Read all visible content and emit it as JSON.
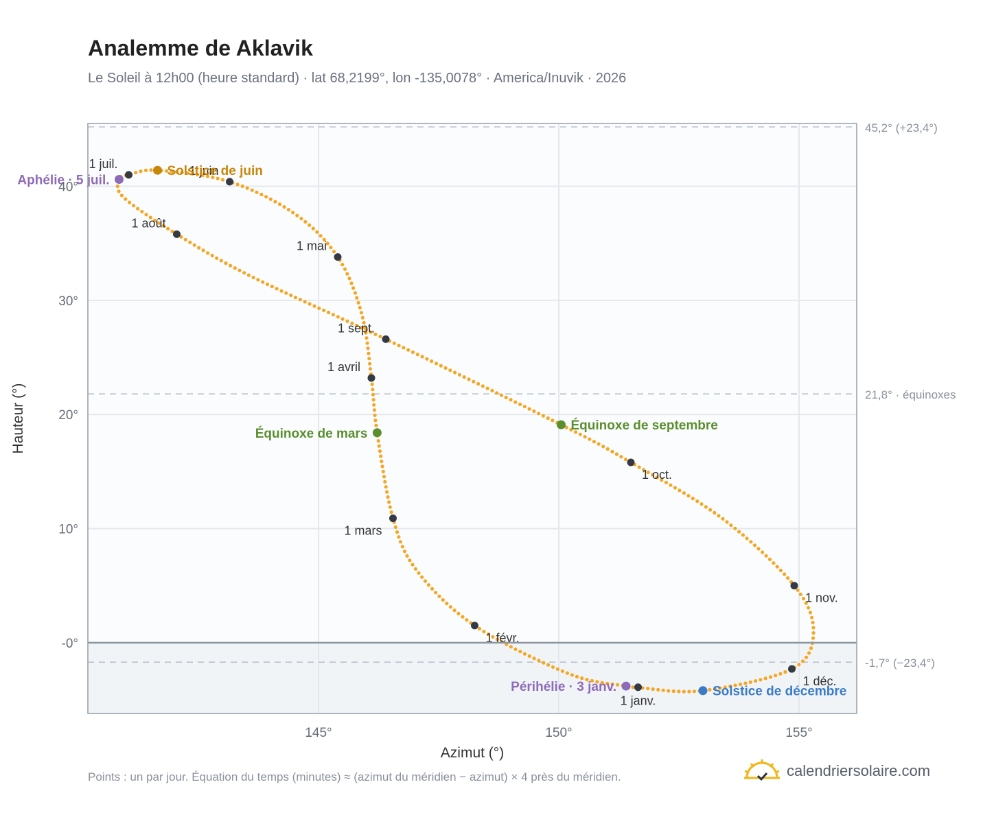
{
  "title": "Analemme de Aklavik",
  "subtitle": "Le Soleil à 12h00 (heure standard) · lat 68,2199°, lon -135,0078° · America/Inuvik · 2026",
  "footnote": "Points : un par jour. Équation du temps (minutes) ≈ (azimut du méridien − azimut) × 4 près du méridien.",
  "brand": "calendriersolaire.com",
  "colors": {
    "path": "#f5a623",
    "month_dot": "#333a44",
    "solstice_june": "#c8860a",
    "solstice_december": "#3a7bc8",
    "equinox": "#5a8f2f",
    "apsis": "#8e6bb8",
    "below_horizon": "#f1f4f7",
    "plot_bg": "#fbfcfd",
    "grid": "#e4e7ec",
    "reference_line": "#b9c2cc",
    "axis_text": "#666d78",
    "brand_icon": "#f2b51a"
  },
  "chart_data": {
    "type": "scatter",
    "xlabel": "Azimut (°)",
    "ylabel": "Hauteur (°)",
    "xlim": [
      140.2,
      156.2
    ],
    "ylim": [
      -6.2,
      45.5
    ],
    "xticks": [
      {
        "value": 145,
        "label": "145°"
      },
      {
        "value": 150,
        "label": "150°"
      },
      {
        "value": 155,
        "label": "155°"
      }
    ],
    "yticks": [
      {
        "value": 0,
        "label": "-0°"
      },
      {
        "value": 10,
        "label": "10°"
      },
      {
        "value": 20,
        "label": "20°"
      },
      {
        "value": 30,
        "label": "30°"
      },
      {
        "value": 40,
        "label": "40°"
      }
    ],
    "grid": true,
    "reference_lines": [
      {
        "y": 45.2,
        "label": "45,2° (+23,4°)"
      },
      {
        "y": 21.8,
        "label": "21,8° · équinoxes"
      },
      {
        "y": -1.7,
        "label": "-1,7° (−23,4°)"
      }
    ],
    "horizon": 0,
    "series_key_points": [
      {
        "date": "01-01",
        "x": 151.65,
        "y": -3.9
      },
      {
        "date": "01-03",
        "x": 151.4,
        "y": -3.8
      },
      {
        "date": "01-15",
        "x": 150.2,
        "y": -2.7
      },
      {
        "date": "02-01",
        "x": 148.25,
        "y": 1.5
      },
      {
        "date": "02-15",
        "x": 147.05,
        "y": 6.3
      },
      {
        "date": "03-01",
        "x": 146.55,
        "y": 10.9
      },
      {
        "date": "03-20",
        "x": 146.22,
        "y": 18.4
      },
      {
        "date": "04-01",
        "x": 146.1,
        "y": 23.2
      },
      {
        "date": "04-15",
        "x": 145.9,
        "y": 28.8
      },
      {
        "date": "05-01",
        "x": 145.4,
        "y": 33.8
      },
      {
        "date": "05-15",
        "x": 144.5,
        "y": 37.6
      },
      {
        "date": "06-01",
        "x": 143.15,
        "y": 40.4
      },
      {
        "date": "06-21",
        "x": 141.65,
        "y": 41.4
      },
      {
        "date": "07-01",
        "x": 141.05,
        "y": 41.0
      },
      {
        "date": "07-05",
        "x": 140.85,
        "y": 40.6
      },
      {
        "date": "07-15",
        "x": 140.95,
        "y": 39.0
      },
      {
        "date": "08-01",
        "x": 142.05,
        "y": 35.8
      },
      {
        "date": "08-15",
        "x": 143.6,
        "y": 32.1
      },
      {
        "date": "09-01",
        "x": 146.4,
        "y": 26.6
      },
      {
        "date": "09-22",
        "x": 150.05,
        "y": 19.1
      },
      {
        "date": "10-01",
        "x": 151.5,
        "y": 15.8
      },
      {
        "date": "10-15",
        "x": 153.4,
        "y": 10.9
      },
      {
        "date": "11-01",
        "x": 154.9,
        "y": 5.0
      },
      {
        "date": "11-15",
        "x": 155.3,
        "y": 0.9
      },
      {
        "date": "12-01",
        "x": 154.85,
        "y": -2.3
      },
      {
        "date": "12-21",
        "x": 153.0,
        "y": -4.2
      },
      {
        "date": "12-31",
        "x": 151.7,
        "y": -3.95
      }
    ],
    "month_markers": [
      {
        "label": "1 janv.",
        "x": 151.65,
        "y": -3.9,
        "anchor": "below"
      },
      {
        "label": "1 févr.",
        "x": 148.25,
        "y": 1.5,
        "anchor": "right-below"
      },
      {
        "label": "1 mars",
        "x": 146.55,
        "y": 10.9,
        "anchor": "left-below"
      },
      {
        "label": "1 avril",
        "x": 146.1,
        "y": 23.2,
        "anchor": "left-above"
      },
      {
        "label": "1 mai",
        "x": 145.4,
        "y": 33.8,
        "anchor": "left-above"
      },
      {
        "label": "1 juin",
        "x": 143.15,
        "y": 40.4,
        "anchor": "left-above"
      },
      {
        "label": "1 juil.",
        "x": 141.05,
        "y": 41.0,
        "anchor": "left-above"
      },
      {
        "label": "1 août",
        "x": 142.05,
        "y": 35.8,
        "anchor": "left-above"
      },
      {
        "label": "1 sept.",
        "x": 146.4,
        "y": 26.6,
        "anchor": "left-above"
      },
      {
        "label": "1 oct.",
        "x": 151.5,
        "y": 15.8,
        "anchor": "right-below"
      },
      {
        "label": "1 nov.",
        "x": 154.9,
        "y": 5.0,
        "anchor": "right-below"
      },
      {
        "label": "1 déc.",
        "x": 154.85,
        "y": -2.3,
        "anchor": "right-below"
      }
    ],
    "events": [
      {
        "label": "Solstice de juin",
        "x": 141.65,
        "y": 41.4,
        "kind": "solstice_june",
        "side": "right"
      },
      {
        "label": "Aphélie · 5 juil.",
        "x": 140.85,
        "y": 40.6,
        "kind": "apsis",
        "side": "left"
      },
      {
        "label": "Équinoxe de mars",
        "x": 146.22,
        "y": 18.4,
        "kind": "equinox",
        "side": "left"
      },
      {
        "label": "Équinoxe de septembre",
        "x": 150.05,
        "y": 19.1,
        "kind": "equinox",
        "side": "right"
      },
      {
        "label": "Périhélie · 3 janv.",
        "x": 151.4,
        "y": -3.8,
        "kind": "apsis",
        "side": "left"
      },
      {
        "label": "Solstice de décembre",
        "x": 153.0,
        "y": -4.2,
        "kind": "solstice_december",
        "side": "right"
      }
    ]
  }
}
